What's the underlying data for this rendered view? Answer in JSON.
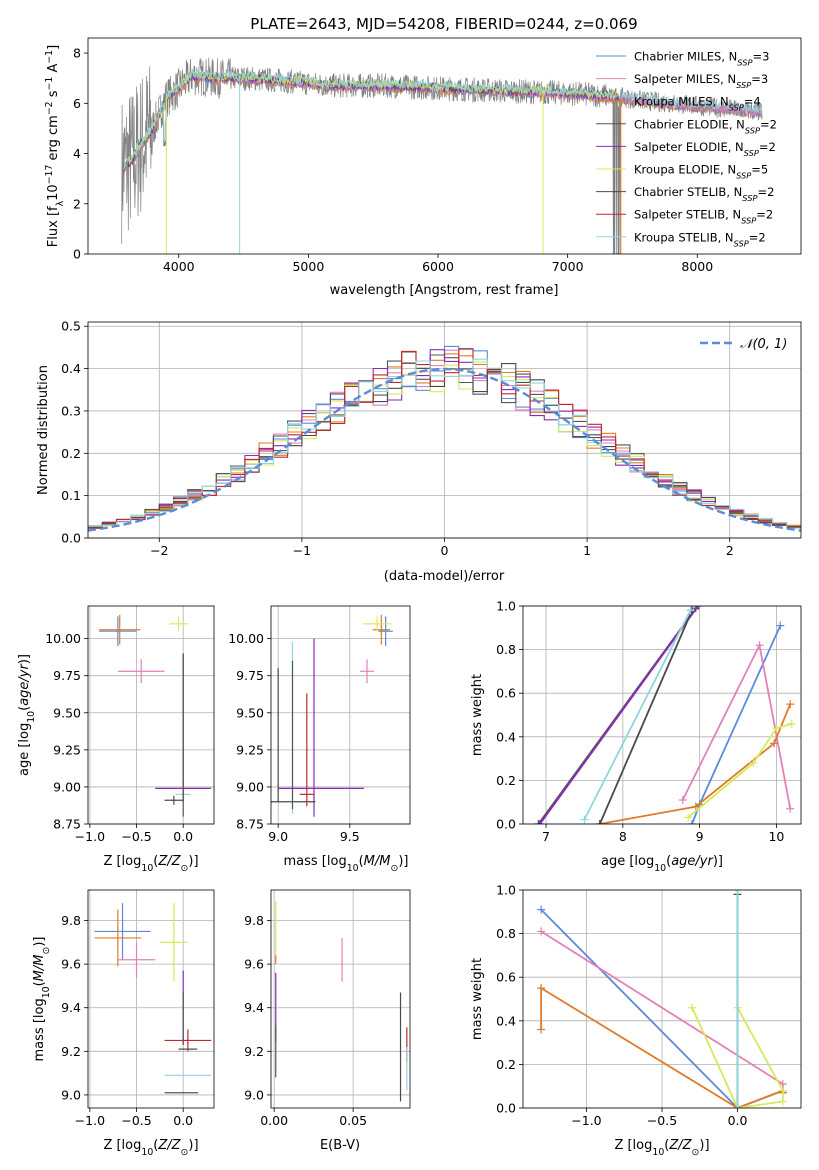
{
  "figure_title": "PLATE=2643, MJD=54208, FIBERID=0244, z=0.069",
  "colors": {
    "Chabrier MILES": "#5b8bd8",
    "Salpeter MILES": "#e57fb8",
    "Kroupa MILES": "#e07b29",
    "Chabrier ELODIE": "#555555",
    "Salpeter ELODIE": "#8e2ab8",
    "Kroupa ELODIE": "#d8e85a",
    "Chabrier STELIB": "#4a4a4a",
    "Salpeter STELIB": "#c0282d",
    "Kroupa STELIB": "#8fd6df",
    "data": "#808080",
    "normal": "#5b8bd8"
  },
  "chart_data": [
    {
      "id": "spectrum",
      "type": "line",
      "title": "PLATE=2643, MJD=54208, FIBERID=0244, z=0.069",
      "xlabel": "wavelength [Angstrom, rest frame]",
      "ylabel": "Flux [f_λ10^-17 erg cm^-2 s^-1 A^-1]",
      "xlim": [
        3300,
        8800
      ],
      "ylim": [
        0,
        8.6
      ],
      "xticks": [
        4000,
        5000,
        6000,
        7000,
        8000
      ],
      "yticks": [
        0,
        2,
        4,
        6,
        8
      ],
      "grid": false,
      "legend_position": "top-right",
      "legend": [
        {
          "label": "Chabrier MILES, N_SSP=3",
          "series": "Chabrier MILES"
        },
        {
          "label": "Salpeter MILES, N_SSP=3",
          "series": "Salpeter MILES"
        },
        {
          "label": "Kroupa MILES, N_SSP=4",
          "series": "Kroupa MILES"
        },
        {
          "label": "Chabrier ELODIE, N_SSP=2",
          "series": "Chabrier ELODIE"
        },
        {
          "label": "Salpeter ELODIE, N_SSP=2",
          "series": "Salpeter ELODIE"
        },
        {
          "label": "Kroupa ELODIE, N_SSP=5",
          "series": "Kroupa ELODIE"
        },
        {
          "label": "Chabrier STELIB, N_SSP=2",
          "series": "Chabrier STELIB"
        },
        {
          "label": "Salpeter STELIB, N_SSP=2",
          "series": "Salpeter STELIB"
        },
        {
          "label": "Kroupa STELIB, N_SSP=2",
          "series": "Kroupa STELIB"
        }
      ],
      "continuum": {
        "x": [
          3560,
          3650,
          3700,
          3800,
          3900,
          4000,
          4100,
          4300,
          4500,
          4800,
          5200,
          5600,
          6000,
          6500,
          7000,
          7300,
          7600,
          8000,
          8400,
          8500
        ],
        "y": [
          3.4,
          3.8,
          4.3,
          5.0,
          6.2,
          6.6,
          7.1,
          7.0,
          7.0,
          6.9,
          6.7,
          6.7,
          6.6,
          6.5,
          6.4,
          6.3,
          6.1,
          5.9,
          5.7,
          5.65
        ]
      },
      "model_range": {
        "Kroupa ELODIE": [
          3600,
          7400
        ],
        "Chabrier ELODIE": [
          3600,
          7400
        ],
        "Salpeter ELODIE": [
          3600,
          7400
        ]
      }
    },
    {
      "id": "residuals",
      "type": "line",
      "xlabel": "(data-model)/error",
      "ylabel": "Normed distribution",
      "xlim": [
        -2.5,
        2.5
      ],
      "ylim": [
        0,
        0.51
      ],
      "xticks": [
        -2,
        -1,
        0,
        1,
        2
      ],
      "yticks": [
        0.0,
        0.1,
        0.2,
        0.3,
        0.4,
        0.5
      ],
      "grid": true,
      "legend_position": "top-right",
      "legend": [
        {
          "label": "𝒩(0, 1)",
          "series": "normal"
        }
      ],
      "bin_width": 0.1,
      "series_order": [
        "Chabrier MILES",
        "Salpeter MILES",
        "Kroupa MILES",
        "Chabrier ELODIE",
        "Salpeter ELODIE",
        "Kroupa ELODIE",
        "Chabrier STELIB",
        "Salpeter STELIB",
        "Kroupa STELIB"
      ]
    },
    {
      "id": "age_vs_Z",
      "type": "scatter",
      "xlabel": "Z [log10(Z/Z⊙)]",
      "ylabel": "age [log10(age/yr)]",
      "xlim": [
        -1.02,
        0.33
      ],
      "ylim": [
        8.75,
        10.22
      ],
      "xticks": [
        -1.0,
        -0.5,
        0.0
      ],
      "yticks": [
        8.75,
        9.0,
        9.25,
        9.5,
        9.75,
        10.0
      ],
      "grid": true,
      "points": [
        {
          "series": "Chabrier MILES",
          "x": -0.7,
          "y": 10.05,
          "xerr": 0.2,
          "yerr": 0.1
        },
        {
          "series": "Salpeter MILES",
          "x": -0.45,
          "y": 9.78,
          "xerr": 0.25,
          "yerr": 0.08
        },
        {
          "series": "Kroupa MILES",
          "x": -0.68,
          "y": 10.06,
          "xerr": 0.22,
          "yerr": 0.1
        },
        {
          "series": "Kroupa ELODIE",
          "x": -0.05,
          "y": 10.1,
          "xerr": 0.1,
          "yerr": 0.05
        },
        {
          "series": "Salpeter ELODIE",
          "x": 0.0,
          "y": 8.99,
          "xerr": 0.3,
          "yerr": 0.05
        },
        {
          "series": "Chabrier STELIB",
          "x": -0.1,
          "y": 8.91,
          "xerr": 0.1,
          "yerr": 0.03
        },
        {
          "series": "Kroupa STELIB",
          "x": 0.0,
          "y": 8.95,
          "xerr": 0.08,
          "yerr": 0.05
        },
        {
          "series": "Salpeter STELIB",
          "x": 0.0,
          "y": 9.4,
          "xerr": 0.0,
          "yerr": 0.5
        },
        {
          "series": "Chabrier ELODIE",
          "x": 0.0,
          "y": 9.35,
          "xerr": 0.0,
          "yerr": 0.55
        }
      ]
    },
    {
      "id": "age_vs_mass",
      "type": "scatter",
      "xlabel": "mass [log10(M/M⊙)]",
      "ylabel": "",
      "xlim": [
        8.95,
        9.92
      ],
      "ylim": [
        8.75,
        10.22
      ],
      "xticks": [
        9.0,
        9.5
      ],
      "yticks": [
        8.75,
        9.0,
        9.25,
        9.5,
        9.75,
        10.0
      ],
      "grid": true,
      "points": [
        {
          "series": "Chabrier MILES",
          "x": 9.75,
          "y": 10.05,
          "xerr": 0.05,
          "yerr": 0.1
        },
        {
          "series": "Salpeter MILES",
          "x": 9.62,
          "y": 9.78,
          "xerr": 0.05,
          "yerr": 0.08
        },
        {
          "series": "Kroupa MILES",
          "x": 9.72,
          "y": 10.06,
          "xerr": 0.06,
          "yerr": 0.1
        },
        {
          "series": "Kroupa ELODIE",
          "x": 9.69,
          "y": 10.1,
          "xerr": 0.1,
          "yerr": 0.05
        },
        {
          "series": "Salpeter ELODIE",
          "x": 9.25,
          "y": 9.4,
          "xerr": 0.0,
          "yerr": 0.6
        },
        {
          "series": "Salpeter ELODIE",
          "x": 9.3,
          "y": 8.99,
          "xerr": 0.3,
          "yerr": 0.0
        },
        {
          "series": "Chabrier STELIB",
          "x": 9.0,
          "y": 9.35,
          "xerr": 0.0,
          "yerr": 0.45
        },
        {
          "series": "Chabrier STELIB",
          "x": 9.08,
          "y": 8.9,
          "xerr": 0.18,
          "yerr": 0.0
        },
        {
          "series": "Kroupa STELIB",
          "x": 9.1,
          "y": 9.4,
          "xerr": 0.0,
          "yerr": 0.58
        },
        {
          "series": "Chabrier ELODIE",
          "x": 9.1,
          "y": 9.35,
          "xerr": 0.0,
          "yerr": 0.5
        },
        {
          "series": "Salpeter STELIB",
          "x": 9.2,
          "y": 9.25,
          "xerr": 0.0,
          "yerr": 0.38
        },
        {
          "series": "Salpeter STELIB",
          "x": 9.2,
          "y": 8.95,
          "xerr": 0.05,
          "yerr": 0.0
        }
      ]
    },
    {
      "id": "weight_vs_age",
      "type": "line",
      "xlabel": "age [log10(age/yr)]",
      "ylabel": "mass weight",
      "xlim": [
        6.7,
        10.32
      ],
      "ylim": [
        0,
        1.0
      ],
      "xticks": [
        7,
        8,
        9,
        10
      ],
      "yticks": [
        0.0,
        0.2,
        0.4,
        0.6,
        0.8,
        1.0
      ],
      "grid": true,
      "series": [
        {
          "name": "Chabrier MILES",
          "x": [
            8.9,
            9.0,
            10.05
          ],
          "y": [
            0.0,
            0.09,
            0.91
          ]
        },
        {
          "name": "Salpeter MILES",
          "x": [
            8.78,
            9.78,
            10.18
          ],
          "y": [
            0.11,
            0.82,
            0.07
          ]
        },
        {
          "name": "Kroupa MILES",
          "x": [
            7.7,
            8.95,
            9.97,
            10.18
          ],
          "y": [
            0.0,
            0.08,
            0.37,
            0.55
          ]
        },
        {
          "name": "Kroupa ELODIE",
          "x": [
            8.85,
            9.7,
            10.0,
            10.2
          ],
          "y": [
            0.03,
            0.28,
            0.44,
            0.46
          ]
        },
        {
          "name": "Chabrier ELODIE",
          "x": [
            6.9,
            8.95
          ],
          "y": [
            0.0,
            0.99
          ]
        },
        {
          "name": "Salpeter ELODIE",
          "x": [
            6.92,
            8.98
          ],
          "y": [
            0.0,
            1.0
          ]
        },
        {
          "name": "Chabrier STELIB",
          "x": [
            7.7,
            8.9
          ],
          "y": [
            0.0,
            0.98
          ]
        },
        {
          "name": "Kroupa STELIB",
          "x": [
            7.5,
            8.88
          ],
          "y": [
            0.02,
            0.98
          ]
        }
      ]
    },
    {
      "id": "mass_vs_Z",
      "type": "scatter",
      "xlabel": "Z [log10(Z/Z⊙)]",
      "ylabel": "mass [log10(M/M⊙)]",
      "xlim": [
        -1.02,
        0.33
      ],
      "ylim": [
        8.94,
        9.94
      ],
      "xticks": [
        -1.0,
        -0.5,
        0.0
      ],
      "yticks": [
        9.0,
        9.2,
        9.4,
        9.6,
        9.8
      ],
      "grid": true,
      "points": [
        {
          "series": "Chabrier MILES",
          "x": -0.65,
          "y": 9.75,
          "xerr": 0.3,
          "yerr": 0.13
        },
        {
          "series": "Salpeter MILES",
          "x": -0.5,
          "y": 9.62,
          "xerr": 0.2,
          "yerr": 0.08
        },
        {
          "series": "Kroupa MILES",
          "x": -0.7,
          "y": 9.72,
          "xerr": 0.25,
          "yerr": 0.13
        },
        {
          "series": "Kroupa ELODIE",
          "x": -0.1,
          "y": 9.7,
          "xerr": 0.15,
          "yerr": 0.18
        },
        {
          "series": "Salpeter ELODIE",
          "x": 0.0,
          "y": 9.4,
          "xerr": 0.0,
          "yerr": 0.17
        },
        {
          "series": "Salpeter STELIB",
          "x": 0.05,
          "y": 9.25,
          "xerr": 0.25,
          "yerr": 0.05
        },
        {
          "series": "Chabrier STELIB",
          "x": 0.05,
          "y": 9.21,
          "xerr": 0.1,
          "yerr": 0.0
        },
        {
          "series": "Kroupa STELIB",
          "x": 0.05,
          "y": 9.09,
          "xerr": 0.25,
          "yerr": 0.0
        },
        {
          "series": "Chabrier ELODIE",
          "x": -0.02,
          "y": 9.01,
          "xerr": 0.18,
          "yerr": 0.0
        },
        {
          "series": "Chabrier ELODIE",
          "x": 0.0,
          "y": 9.35,
          "xerr": 0.0,
          "yerr": 0.12
        }
      ]
    },
    {
      "id": "mass_vs_EBV",
      "type": "scatter",
      "xlabel": "E(B-V)",
      "ylabel": "",
      "xlim": [
        -0.002,
        0.086
      ],
      "ylim": [
        8.94,
        9.94
      ],
      "xticks": [
        0.0,
        0.05
      ],
      "yticks": [
        9.0,
        9.2,
        9.4,
        9.6,
        9.8
      ],
      "grid": true,
      "points": [
        {
          "series": "Kroupa ELODIE",
          "x": 0.001,
          "y": 9.75,
          "xerr": 0.0,
          "yerr": 0.14
        },
        {
          "series": "Kroupa MILES",
          "x": 0.001,
          "y": 9.62,
          "xerr": 0.0,
          "yerr": 0.02
        },
        {
          "series": "Salpeter ELODIE",
          "x": 0.001,
          "y": 9.4,
          "xerr": 0.0,
          "yerr": 0.16
        },
        {
          "series": "Chabrier ELODIE",
          "x": 0.001,
          "y": 9.2,
          "xerr": 0.0,
          "yerr": 0.12
        },
        {
          "series": "Salpeter MILES",
          "x": 0.043,
          "y": 9.62,
          "xerr": 0.0,
          "yerr": 0.1
        },
        {
          "series": "Chabrier STELIB",
          "x": 0.08,
          "y": 9.22,
          "xerr": 0.0,
          "yerr": 0.25
        },
        {
          "series": "Salpeter STELIB",
          "x": 0.084,
          "y": 9.23,
          "xerr": 0.0,
          "yerr": 0.08
        },
        {
          "series": "Kroupa STELIB",
          "x": 0.084,
          "y": 9.12,
          "xerr": 0.0,
          "yerr": 0.1
        }
      ]
    },
    {
      "id": "weight_vs_Z",
      "type": "line",
      "xlabel": "Z [log10(Z/Z⊙)]",
      "ylabel": "mass weight",
      "xlim": [
        -1.42,
        0.42
      ],
      "ylim": [
        0,
        1.0
      ],
      "xticks": [
        -1.0,
        -0.5,
        0.0
      ],
      "yticks": [
        0.0,
        0.2,
        0.4,
        0.6,
        0.8,
        1.0
      ],
      "grid": true,
      "series": [
        {
          "name": "Chabrier MILES",
          "x": [
            -1.3,
            0.0,
            0.3
          ],
          "y": [
            0.91,
            0.0,
            0.08
          ]
        },
        {
          "name": "Salpeter MILES",
          "x": [
            -1.3,
            0.3,
            0.3
          ],
          "y": [
            0.81,
            0.11,
            0.07
          ]
        },
        {
          "name": "Kroupa MILES",
          "x": [
            -1.3,
            -1.3,
            0.0,
            0.3,
            0.3
          ],
          "y": [
            0.36,
            0.55,
            0.0,
            0.08,
            0.07
          ]
        },
        {
          "name": "Kroupa ELODIE",
          "x": [
            -0.3,
            0.0,
            0.3,
            0.3,
            0.0
          ],
          "y": [
            0.46,
            0.0,
            0.03,
            0.08,
            0.46
          ]
        },
        {
          "name": "Chabrier STELIB",
          "x": [
            0.0,
            0.0
          ],
          "y": [
            0.0,
            0.98
          ]
        },
        {
          "name": "Kroupa STELIB",
          "x": [
            0.0,
            0.0
          ],
          "y": [
            0.0,
            1.0
          ]
        }
      ]
    }
  ]
}
